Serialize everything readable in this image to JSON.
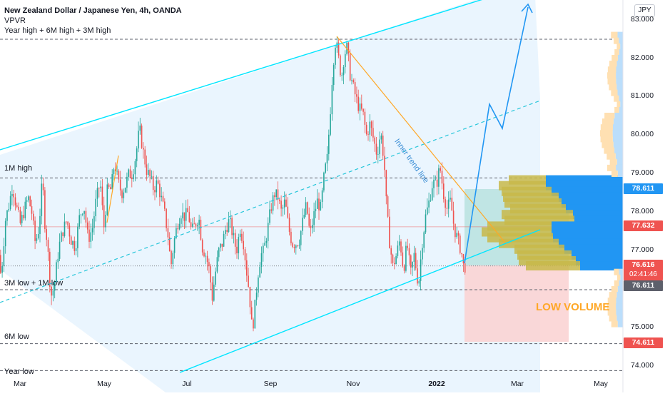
{
  "header": {
    "title": "New Zealand Dollar / Japanese Yen, 4h, OANDA",
    "indicator": "VPVR",
    "subtitle": "Year high + 6M high + 3M high"
  },
  "currency_button": "JPY",
  "levels": [
    {
      "label": "1M high",
      "value": 78.9
    },
    {
      "label": "3M low + 1M low",
      "value": 76.0
    },
    {
      "label": "6M low",
      "value": 74.6
    },
    {
      "label": "Year low",
      "value": 73.9
    }
  ],
  "annotations": {
    "trend_line": "Inner trend line",
    "low_volume": "LOW VOLUME"
  },
  "price_tags": {
    "p1": "78.611",
    "p2": "77.632",
    "current_price": "76.616",
    "countdown": "02:41:46",
    "p3": "76.611",
    "p4": "74.611"
  },
  "colors": {
    "up": "#26a69a",
    "down": "#ef5350",
    "channel": "#00e5ff",
    "trend": "#ffa726",
    "projection": "#2196f3",
    "vp_up": "#2196f3",
    "vp_down": "#fbc02d"
  },
  "chart_data": {
    "type": "candlestick",
    "symbol": "NZDJPY",
    "timeframe": "4h",
    "x_ticks": [
      "Mar",
      "May",
      "Jul",
      "Sep",
      "Nov",
      "2022",
      "Mar",
      "May"
    ],
    "y_ticks": [
      "83.000",
      "82.000",
      "81.000",
      "80.000",
      "79.000",
      "78.000",
      "77.000",
      "76.000",
      "75.000",
      "74.000"
    ],
    "ylim": [
      73.7,
      83.4
    ],
    "path": [
      [
        0,
        76.9
      ],
      [
        3,
        76.3
      ],
      [
        9,
        77.8
      ],
      [
        14,
        78.2
      ],
      [
        19,
        78.7
      ],
      [
        24,
        78.2
      ],
      [
        30,
        77.7
      ],
      [
        36,
        78.1
      ],
      [
        41,
        78.4
      ],
      [
        46,
        78.0
      ],
      [
        51,
        77.2
      ],
      [
        56,
        77.6
      ],
      [
        61,
        78.9
      ],
      [
        64,
        77.8
      ],
      [
        68,
        77.2
      ],
      [
        71,
        76.3
      ],
      [
        74,
        75.8
      ],
      [
        78,
        76.2
      ],
      [
        84,
        77.1
      ],
      [
        89,
        77.5
      ],
      [
        95,
        77.8
      ],
      [
        101,
        77.3
      ],
      [
        107,
        77.1
      ],
      [
        113,
        77.9
      ],
      [
        119,
        78.2
      ],
      [
        125,
        77.3
      ],
      [
        131,
        77.6
      ],
      [
        136,
        78.3
      ],
      [
        142,
        78.8
      ],
      [
        147,
        77.6
      ],
      [
        152,
        78.6
      ],
      [
        157,
        78.6
      ],
      [
        162,
        79.3
      ],
      [
        167,
        78.8
      ],
      [
        172,
        78.5
      ],
      [
        177,
        78.7
      ],
      [
        182,
        79.0
      ],
      [
        187,
        79.0
      ],
      [
        192,
        79.5
      ],
      [
        197,
        80.2
      ],
      [
        202,
        79.6
      ],
      [
        207,
        79.1
      ],
      [
        212,
        78.9
      ],
      [
        217,
        78.6
      ],
      [
        222,
        78.8
      ],
      [
        227,
        78.4
      ],
      [
        232,
        78.0
      ],
      [
        237,
        77.4
      ],
      [
        241,
        76.6
      ],
      [
        245,
        77.2
      ],
      [
        250,
        77.7
      ],
      [
        255,
        78.0
      ],
      [
        260,
        77.9
      ],
      [
        265,
        78.0
      ],
      [
        270,
        77.5
      ],
      [
        275,
        77.7
      ],
      [
        280,
        77.9
      ],
      [
        285,
        77.1
      ],
      [
        290,
        76.9
      ],
      [
        295,
        76.5
      ],
      [
        299,
        75.8
      ],
      [
        303,
        76.4
      ],
      [
        308,
        77.0
      ],
      [
        313,
        77.2
      ],
      [
        318,
        77.6
      ],
      [
        323,
        77.8
      ],
      [
        328,
        77.4
      ],
      [
        333,
        77.0
      ],
      [
        338,
        77.6
      ],
      [
        343,
        77.2
      ],
      [
        347,
        76.5
      ],
      [
        351,
        75.9
      ],
      [
        355,
        74.9
      ],
      [
        359,
        75.6
      ],
      [
        363,
        76.4
      ],
      [
        367,
        76.9
      ],
      [
        371,
        77.0
      ],
      [
        376,
        77.5
      ],
      [
        381,
        78.1
      ],
      [
        386,
        78.5
      ],
      [
        391,
        78.4
      ],
      [
        396,
        78.0
      ],
      [
        401,
        78.3
      ],
      [
        406,
        77.6
      ],
      [
        411,
        77.2
      ],
      [
        416,
        77.2
      ],
      [
        421,
        77.3
      ],
      [
        426,
        77.8
      ],
      [
        431,
        78.2
      ],
      [
        436,
        77.4
      ],
      [
        441,
        77.9
      ],
      [
        446,
        78.3
      ],
      [
        451,
        78.1
      ],
      [
        456,
        79.0
      ],
      [
        460,
        79.4
      ],
      [
        464,
        80.5
      ],
      [
        468,
        81.8
      ],
      [
        472,
        82.5
      ],
      [
        476,
        82.0
      ],
      [
        480,
        81.5
      ],
      [
        484,
        82.1
      ],
      [
        488,
        82.3
      ],
      [
        492,
        81.6
      ],
      [
        496,
        81.3
      ],
      [
        500,
        81.0
      ],
      [
        505,
        80.7
      ],
      [
        510,
        80.6
      ],
      [
        515,
        80.0
      ],
      [
        520,
        80.3
      ],
      [
        525,
        79.9
      ],
      [
        530,
        79.5
      ],
      [
        535,
        80.1
      ],
      [
        540,
        79.3
      ],
      [
        543,
        78.2
      ],
      [
        547,
        77.3
      ],
      [
        552,
        76.6
      ],
      [
        557,
        76.9
      ],
      [
        562,
        77.3
      ],
      [
        567,
        76.5
      ],
      [
        572,
        77.2
      ],
      [
        577,
        76.4
      ],
      [
        582,
        76.9
      ],
      [
        588,
        76.1
      ],
      [
        593,
        77.2
      ],
      [
        598,
        77.9
      ],
      [
        603,
        78.3
      ],
      [
        608,
        78.8
      ],
      [
        613,
        78.7
      ],
      [
        618,
        79.2
      ],
      [
        623,
        78.5
      ],
      [
        628,
        78.1
      ],
      [
        633,
        78.3
      ],
      [
        638,
        77.6
      ],
      [
        643,
        77.3
      ],
      [
        648,
        77.0
      ],
      [
        651,
        76.6
      ]
    ]
  }
}
